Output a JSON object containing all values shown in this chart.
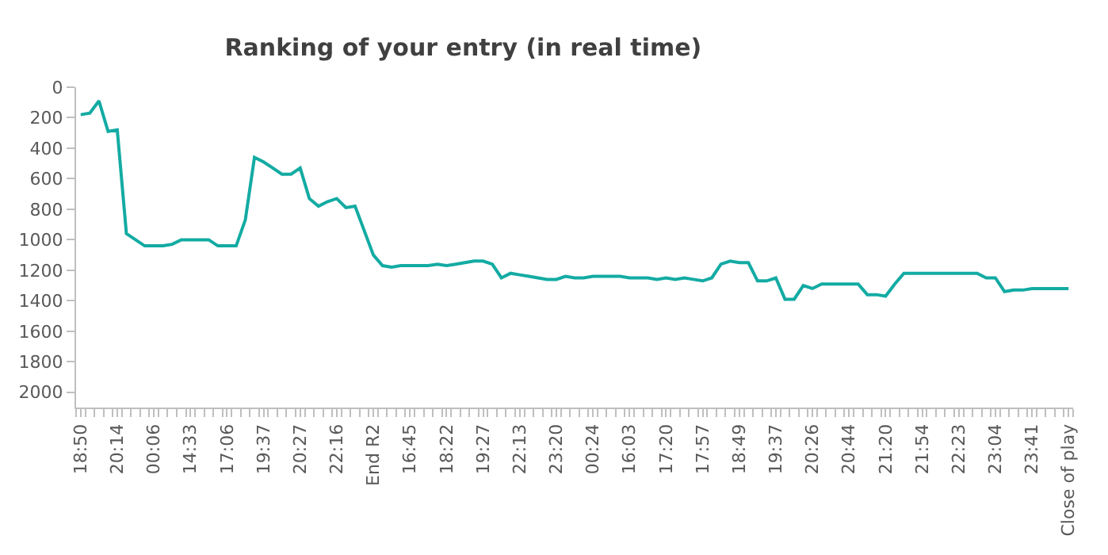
{
  "chart_data": {
    "type": "line",
    "title": "Ranking of your entry (in real time)",
    "categories": [
      "18:50",
      null,
      null,
      null,
      "20:14",
      null,
      null,
      null,
      "00:06",
      null,
      null,
      null,
      "14:33",
      null,
      null,
      null,
      "17:06",
      null,
      null,
      null,
      "19:37",
      null,
      null,
      null,
      "20:27",
      null,
      null,
      null,
      "22:16",
      null,
      null,
      null,
      "End R2",
      null,
      null,
      null,
      "16:45",
      null,
      null,
      null,
      "18:22",
      null,
      null,
      null,
      "19:27",
      null,
      null,
      null,
      "22:13",
      null,
      null,
      null,
      "23:20",
      null,
      null,
      null,
      "00:24",
      null,
      null,
      null,
      "16:03",
      null,
      null,
      null,
      "17:20",
      null,
      null,
      null,
      "17:57",
      null,
      null,
      null,
      "18:49",
      null,
      null,
      null,
      "19:37",
      null,
      null,
      null,
      "20:26",
      null,
      null,
      null,
      "20:44",
      null,
      null,
      null,
      "21:20",
      null,
      null,
      null,
      "21:54",
      null,
      null,
      null,
      "22:23",
      null,
      null,
      null,
      "23:04",
      null,
      null,
      null,
      "23:41",
      null,
      null,
      null,
      "Close of play"
    ],
    "series": [
      {
        "color": "#13aba3",
        "values": [
          180,
          170,
          90,
          290,
          280,
          960,
          1000,
          1040,
          1040,
          1040,
          1030,
          1000,
          1000,
          1000,
          1000,
          1040,
          1040,
          1040,
          870,
          460,
          490,
          530,
          570,
          570,
          530,
          730,
          780,
          750,
          730,
          790,
          780,
          940,
          1100,
          1170,
          1180,
          1170,
          1170,
          1170,
          1170,
          1160,
          1170,
          1160,
          1150,
          1140,
          1140,
          1160,
          1250,
          1220,
          1230,
          1240,
          1250,
          1260,
          1260,
          1240,
          1250,
          1250,
          1240,
          1240,
          1240,
          1240,
          1250,
          1250,
          1250,
          1260,
          1250,
          1260,
          1250,
          1260,
          1270,
          1250,
          1160,
          1140,
          1150,
          1150,
          1270,
          1270,
          1250,
          1390,
          1390,
          1300,
          1320,
          1290,
          1290,
          1290,
          1290,
          1290,
          1360,
          1360,
          1370,
          1290,
          1220,
          1220,
          1220,
          1220,
          1220,
          1220,
          1220,
          1220,
          1220,
          1250,
          1250,
          1340,
          1330,
          1330,
          1320,
          1320,
          1320,
          1320,
          1320
        ]
      }
    ],
    "ylim": [
      2100,
      0
    ],
    "yticks": [
      0,
      200,
      400,
      600,
      800,
      1000,
      1200,
      1400,
      1600,
      1800,
      2000
    ],
    "grid": false,
    "marker": "none",
    "line_style": "solid"
  }
}
